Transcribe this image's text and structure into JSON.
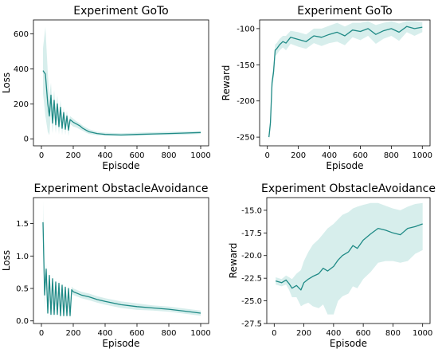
{
  "colors": {
    "line": "#1f8a86",
    "band": "#7cc6c0"
  },
  "chart_data": [
    {
      "type": "line",
      "title": "Experiment GoTo",
      "xlabel": "Episode",
      "ylabel": "Loss",
      "xlim": [
        -50,
        1050
      ],
      "ylim": [
        -40,
        680
      ],
      "xticks": [
        0,
        200,
        400,
        600,
        800,
        1000
      ],
      "yticks": [
        0,
        200,
        400,
        600
      ],
      "series": [
        {
          "x": [
            10,
            25,
            40,
            50,
            60,
            70,
            80,
            90,
            100,
            110,
            120,
            130,
            140,
            150,
            160,
            170,
            180,
            200,
            220,
            240,
            260,
            280,
            300,
            350,
            400,
            500,
            600,
            700,
            800,
            900,
            1000
          ],
          "y": [
            390,
            370,
            200,
            130,
            250,
            90,
            220,
            80,
            200,
            70,
            180,
            60,
            150,
            55,
            130,
            50,
            110,
            95,
            85,
            75,
            60,
            50,
            40,
            30,
            25,
            22,
            25,
            28,
            30,
            33,
            36
          ],
          "upper": [
            520,
            640,
            380,
            240,
            320,
            170,
            280,
            150,
            250,
            130,
            220,
            110,
            180,
            100,
            160,
            90,
            130,
            115,
            100,
            90,
            75,
            65,
            55,
            40,
            35,
            32,
            35,
            38,
            40,
            42,
            44
          ],
          "lower": [
            260,
            130,
            40,
            20,
            160,
            30,
            150,
            30,
            140,
            25,
            130,
            20,
            110,
            20,
            100,
            15,
            85,
            70,
            65,
            55,
            45,
            35,
            28,
            20,
            18,
            15,
            18,
            20,
            22,
            24,
            28
          ]
        }
      ]
    },
    {
      "type": "line",
      "title": "Experiment GoTo",
      "xlabel": "Episode",
      "ylabel": "Reward",
      "xlim": [
        -50,
        1050
      ],
      "ylim": [
        -262,
        -88
      ],
      "xticks": [
        0,
        200,
        400,
        600,
        800,
        1000
      ],
      "yticks": [
        -250,
        -200,
        -150,
        -100
      ],
      "series": [
        {
          "x": [
            10,
            20,
            30,
            40,
            50,
            60,
            70,
            80,
            100,
            120,
            150,
            200,
            250,
            300,
            350,
            400,
            450,
            500,
            550,
            600,
            650,
            700,
            750,
            800,
            850,
            900,
            950,
            1000
          ],
          "y": [
            -250,
            -230,
            -175,
            -160,
            -130,
            -128,
            -125,
            -122,
            -118,
            -120,
            -112,
            -115,
            -118,
            -110,
            -112,
            -108,
            -105,
            -110,
            -102,
            -104,
            -100,
            -108,
            -103,
            -100,
            -105,
            -97,
            -100,
            -98
          ],
          "upper": [
            -245,
            -220,
            -165,
            -150,
            -122,
            -120,
            -117,
            -114,
            -110,
            -110,
            -103,
            -105,
            -108,
            -100,
            -100,
            -96,
            -92,
            -97,
            -92,
            -92,
            -90,
            -95,
            -92,
            -90,
            -93,
            -90,
            -90,
            -91
          ],
          "lower": [
            -255,
            -240,
            -185,
            -170,
            -138,
            -136,
            -133,
            -130,
            -126,
            -130,
            -121,
            -125,
            -128,
            -120,
            -124,
            -120,
            -118,
            -123,
            -112,
            -116,
            -110,
            -121,
            -114,
            -110,
            -117,
            -105,
            -110,
            -105
          ]
        }
      ]
    },
    {
      "type": "line",
      "title": "Experiment ObstacleAvoidance",
      "xlabel": "Episode",
      "ylabel": "Loss",
      "xlim": [
        -50,
        1050
      ],
      "ylim": [
        -0.04,
        1.9
      ],
      "xticks": [
        0,
        200,
        400,
        600,
        800,
        1000
      ],
      "yticks": [
        0.0,
        0.5,
        1.0,
        1.5
      ],
      "series": [
        {
          "x": [
            10,
            20,
            30,
            40,
            50,
            60,
            70,
            80,
            90,
            100,
            110,
            120,
            130,
            140,
            150,
            160,
            170,
            180,
            190,
            200,
            250,
            300,
            350,
            400,
            500,
            600,
            700,
            800,
            900,
            1000
          ],
          "y": [
            1.52,
            0.4,
            0.8,
            0.12,
            0.7,
            0.1,
            0.65,
            0.1,
            0.6,
            0.1,
            0.58,
            0.08,
            0.55,
            0.08,
            0.52,
            0.08,
            0.5,
            0.08,
            0.48,
            0.45,
            0.4,
            0.37,
            0.33,
            0.3,
            0.25,
            0.22,
            0.2,
            0.18,
            0.15,
            0.12
          ],
          "upper": [
            1.85,
            0.6,
            0.9,
            0.2,
            0.78,
            0.18,
            0.72,
            0.17,
            0.66,
            0.17,
            0.64,
            0.14,
            0.6,
            0.14,
            0.57,
            0.13,
            0.55,
            0.13,
            0.53,
            0.5,
            0.45,
            0.42,
            0.38,
            0.35,
            0.3,
            0.27,
            0.24,
            0.22,
            0.19,
            0.16
          ],
          "lower": [
            1.2,
            0.2,
            0.7,
            0.04,
            0.62,
            0.03,
            0.58,
            0.03,
            0.54,
            0.03,
            0.52,
            0.02,
            0.5,
            0.02,
            0.47,
            0.02,
            0.45,
            0.02,
            0.43,
            0.4,
            0.35,
            0.32,
            0.28,
            0.25,
            0.2,
            0.17,
            0.16,
            0.14,
            0.11,
            0.08
          ]
        }
      ]
    },
    {
      "type": "line",
      "title": "Experiment ObstacleAvoidance",
      "xlabel": "Episode",
      "ylabel": "Reward",
      "xlim": [
        -50,
        1050
      ],
      "ylim": [
        -27.5,
        -13.6
      ],
      "xticks": [
        0,
        200,
        400,
        600,
        800,
        1000
      ],
      "yticks": [
        -27.5,
        -25.0,
        -22.5,
        -20.0,
        -17.5,
        -15.0
      ],
      "series": [
        {
          "x": [
            10,
            50,
            80,
            100,
            120,
            150,
            180,
            200,
            230,
            260,
            300,
            330,
            360,
            400,
            430,
            460,
            500,
            530,
            560,
            600,
            650,
            700,
            750,
            800,
            850,
            900,
            950,
            1000
          ],
          "y": [
            -22.8,
            -23.0,
            -22.7,
            -23.1,
            -23.6,
            -23.3,
            -23.8,
            -23.0,
            -22.6,
            -22.3,
            -22.0,
            -21.4,
            -21.7,
            -21.2,
            -20.5,
            -20.0,
            -19.6,
            -18.9,
            -19.2,
            -18.3,
            -17.6,
            -17.0,
            -17.2,
            -17.5,
            -17.7,
            -17.0,
            -16.8,
            -16.5
          ],
          "upper": [
            -22.4,
            -22.6,
            -22.2,
            -22.4,
            -22.6,
            -22.0,
            -21.6,
            -20.6,
            -19.6,
            -18.8,
            -18.2,
            -17.6,
            -17.0,
            -16.5,
            -16.0,
            -15.5,
            -15.2,
            -14.8,
            -14.6,
            -14.4,
            -14.2,
            -14.2,
            -14.5,
            -14.8,
            -15.0,
            -14.6,
            -14.3,
            -14.2
          ],
          "lower": [
            -23.2,
            -23.4,
            -23.2,
            -23.8,
            -24.6,
            -24.6,
            -25.6,
            -25.4,
            -25.2,
            -25.6,
            -25.8,
            -25.4,
            -26.5,
            -26.5,
            -25.0,
            -24.5,
            -24.2,
            -23.4,
            -23.6,
            -22.6,
            -21.8,
            -20.8,
            -20.6,
            -20.6,
            -20.8,
            -20.6,
            -19.8,
            -19.4
          ]
        }
      ]
    }
  ]
}
